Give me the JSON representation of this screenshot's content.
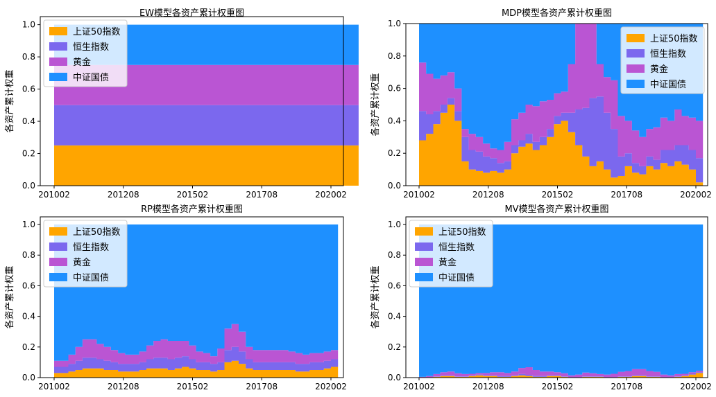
{
  "colors": {
    "上证50指数": "#ffa500",
    "恒生指数": "#7b68ee",
    "黄金": "#ba55d3",
    "中证国债": "#1e90ff"
  },
  "chart_data": [
    {
      "type": "area",
      "title": "EW模型各资产累计权重图",
      "xlabel": "",
      "ylabel": "各资产累计权重",
      "ylim": [
        0,
        1.05
      ],
      "yticks": [
        "0.0",
        "0.2",
        "0.4",
        "0.6",
        "0.8",
        "1.0"
      ],
      "xticks": [
        "201002",
        "201208",
        "201502",
        "201708",
        "202002"
      ],
      "legend_position": "top-left",
      "x_start": "201002",
      "x_end": "202006",
      "series": [
        {
          "name": "上证50指数",
          "values": [
            0.25,
            0.25,
            0.25,
            0.25,
            0.25,
            0.25,
            0.25,
            0.25,
            0.25,
            0.25,
            0.25
          ]
        },
        {
          "name": "恒生指数",
          "values": [
            0.25,
            0.25,
            0.25,
            0.25,
            0.25,
            0.25,
            0.25,
            0.25,
            0.25,
            0.25,
            0.25
          ]
        },
        {
          "name": "黄金",
          "values": [
            0.25,
            0.25,
            0.25,
            0.25,
            0.25,
            0.25,
            0.25,
            0.25,
            0.25,
            0.25,
            0.25
          ]
        },
        {
          "name": "中证国债",
          "values": [
            0.25,
            0.25,
            0.25,
            0.25,
            0.25,
            0.25,
            0.25,
            0.25,
            0.25,
            0.25,
            0.25
          ]
        }
      ]
    },
    {
      "type": "area",
      "title": "MDP模型各资产累计权重图",
      "xlabel": "",
      "ylabel": "各资产累计权重",
      "ylim": [
        0,
        1.0
      ],
      "yticks": [
        "0.0",
        "0.2",
        "0.4",
        "0.6",
        "0.8",
        "1.0"
      ],
      "xticks": [
        "201002",
        "201208",
        "201502",
        "201708",
        "202002"
      ],
      "legend_position": "top-right",
      "x_start": "201002",
      "x_end": "202006",
      "series": [
        {
          "name": "上证50指数",
          "values": [
            0.28,
            0.32,
            0.38,
            0.45,
            0.5,
            0.4,
            0.15,
            0.1,
            0.09,
            0.08,
            0.09,
            0.08,
            0.1,
            0.2,
            0.24,
            0.26,
            0.22,
            0.25,
            0.3,
            0.38,
            0.4,
            0.33,
            0.25,
            0.18,
            0.12,
            0.15,
            0.1,
            0.05,
            0.06,
            0.12,
            0.08,
            0.07,
            0.12,
            0.1,
            0.14,
            0.12,
            0.15,
            0.13,
            0.1,
            0.02
          ]
        },
        {
          "name": "恒生指数",
          "values": [
            0.18,
            0.12,
            0.08,
            0.05,
            0.04,
            0.06,
            0.15,
            0.12,
            0.12,
            0.1,
            0.08,
            0.06,
            0.05,
            0.05,
            0.04,
            0.06,
            0.05,
            0.05,
            0.05,
            0.05,
            0.05,
            0.12,
            0.22,
            0.3,
            0.42,
            0.4,
            0.35,
            0.3,
            0.12,
            0.08,
            0.06,
            0.05,
            0.06,
            0.06,
            0.08,
            0.1,
            0.1,
            0.12,
            0.12,
            0.15
          ]
        },
        {
          "name": "黄金",
          "values": [
            0.3,
            0.25,
            0.2,
            0.18,
            0.16,
            0.14,
            0.05,
            0.1,
            0.09,
            0.08,
            0.06,
            0.08,
            0.12,
            0.16,
            0.17,
            0.18,
            0.22,
            0.22,
            0.18,
            0.14,
            0.13,
            0.3,
            0.53,
            0.52,
            0.46,
            0.2,
            0.22,
            0.3,
            0.25,
            0.2,
            0.2,
            0.18,
            0.17,
            0.2,
            0.2,
            0.18,
            0.22,
            0.18,
            0.2,
            0.23
          ]
        },
        {
          "name": "中证国债",
          "values": [
            0.24,
            0.31,
            0.34,
            0.32,
            0.3,
            0.4,
            0.65,
            0.68,
            0.7,
            0.74,
            0.77,
            0.78,
            0.73,
            0.59,
            0.55,
            0.5,
            0.51,
            0.48,
            0.47,
            0.43,
            0.42,
            0.25,
            0.0,
            0.0,
            0.0,
            0.25,
            0.33,
            0.35,
            0.57,
            0.6,
            0.66,
            0.7,
            0.65,
            0.64,
            0.58,
            0.6,
            0.53,
            0.57,
            0.58,
            0.6
          ]
        }
      ]
    },
    {
      "type": "area",
      "title": "RP模型各资产累计权重图",
      "xlabel": "",
      "ylabel": "各资产累计权重",
      "ylim": [
        0,
        1.05
      ],
      "yticks": [
        "0.0",
        "0.2",
        "0.4",
        "0.6",
        "0.8",
        "1.0"
      ],
      "xticks": [
        "201002",
        "201208",
        "201502",
        "201708",
        "202002"
      ],
      "legend_position": "top-left",
      "x_start": "201002",
      "x_end": "202006",
      "series": [
        {
          "name": "上证50指数",
          "values": [
            0.03,
            0.03,
            0.04,
            0.05,
            0.06,
            0.06,
            0.06,
            0.05,
            0.05,
            0.04,
            0.04,
            0.04,
            0.05,
            0.06,
            0.06,
            0.06,
            0.05,
            0.06,
            0.07,
            0.06,
            0.05,
            0.05,
            0.04,
            0.05,
            0.1,
            0.11,
            0.09,
            0.06,
            0.05,
            0.05,
            0.05,
            0.05,
            0.05,
            0.05,
            0.04,
            0.04,
            0.05,
            0.05,
            0.06,
            0.07
          ]
        },
        {
          "name": "恒生指数",
          "values": [
            0.04,
            0.04,
            0.05,
            0.06,
            0.07,
            0.07,
            0.06,
            0.06,
            0.05,
            0.05,
            0.05,
            0.05,
            0.05,
            0.06,
            0.07,
            0.07,
            0.07,
            0.07,
            0.07,
            0.06,
            0.05,
            0.05,
            0.05,
            0.05,
            0.08,
            0.09,
            0.08,
            0.06,
            0.05,
            0.05,
            0.05,
            0.05,
            0.05,
            0.05,
            0.05,
            0.05,
            0.05,
            0.05,
            0.05,
            0.05
          ]
        },
        {
          "name": "黄金",
          "values": [
            0.04,
            0.04,
            0.06,
            0.09,
            0.12,
            0.12,
            0.1,
            0.09,
            0.08,
            0.07,
            0.06,
            0.06,
            0.07,
            0.09,
            0.11,
            0.12,
            0.12,
            0.11,
            0.1,
            0.09,
            0.07,
            0.06,
            0.05,
            0.09,
            0.14,
            0.15,
            0.13,
            0.08,
            0.08,
            0.08,
            0.08,
            0.08,
            0.08,
            0.07,
            0.07,
            0.06,
            0.06,
            0.06,
            0.06,
            0.06
          ]
        },
        {
          "name": "中证国债",
          "values": [
            0.89,
            0.89,
            0.85,
            0.8,
            0.75,
            0.75,
            0.78,
            0.8,
            0.82,
            0.84,
            0.85,
            0.85,
            0.83,
            0.79,
            0.76,
            0.75,
            0.76,
            0.76,
            0.76,
            0.79,
            0.83,
            0.84,
            0.86,
            0.81,
            0.68,
            0.65,
            0.7,
            0.8,
            0.82,
            0.82,
            0.82,
            0.82,
            0.82,
            0.83,
            0.84,
            0.85,
            0.84,
            0.84,
            0.83,
            0.82
          ]
        }
      ]
    },
    {
      "type": "area",
      "title": "MV模型各资产累计权重图",
      "xlabel": "",
      "ylabel": "各资产累计权重",
      "ylim": [
        0,
        1.05
      ],
      "yticks": [
        "0.0",
        "0.2",
        "0.4",
        "0.6",
        "0.8",
        "1.0"
      ],
      "xticks": [
        "201002",
        "201208",
        "201502",
        "201708",
        "202002"
      ],
      "legend_position": "top-left",
      "x_start": "201002",
      "x_end": "202006",
      "series": [
        {
          "name": "上证50指数",
          "values": [
            0.0,
            0.0,
            0.005,
            0.01,
            0.01,
            0.005,
            0.005,
            0.01,
            0.015,
            0.01,
            0.01,
            0.005,
            0.005,
            0.01,
            0.015,
            0.01,
            0.005,
            0.005,
            0.01,
            0.01,
            0.005,
            0.0,
            0.0,
            0.005,
            0.005,
            0.005,
            0.0,
            0.0,
            0.005,
            0.005,
            0.01,
            0.01,
            0.005,
            0.005,
            0.0,
            0.0,
            0.005,
            0.01,
            0.02,
            0.03
          ]
        },
        {
          "name": "恒生指数",
          "values": [
            0.0,
            0.0,
            0.003,
            0.005,
            0.005,
            0.003,
            0.003,
            0.005,
            0.005,
            0.005,
            0.005,
            0.005,
            0.005,
            0.005,
            0.008,
            0.008,
            0.005,
            0.005,
            0.005,
            0.005,
            0.003,
            0.0,
            0.0,
            0.003,
            0.003,
            0.003,
            0.0,
            0.0,
            0.003,
            0.003,
            0.005,
            0.005,
            0.003,
            0.003,
            0.0,
            0.0,
            0.003,
            0.005,
            0.005,
            0.005
          ]
        },
        {
          "name": "黄金",
          "values": [
            0.005,
            0.01,
            0.015,
            0.02,
            0.025,
            0.02,
            0.015,
            0.01,
            0.01,
            0.015,
            0.02,
            0.025,
            0.02,
            0.025,
            0.04,
            0.05,
            0.04,
            0.03,
            0.025,
            0.02,
            0.02,
            0.015,
            0.02,
            0.025,
            0.02,
            0.015,
            0.02,
            0.025,
            0.03,
            0.035,
            0.04,
            0.04,
            0.035,
            0.03,
            0.02,
            0.015,
            0.015,
            0.01,
            0.01,
            0.01
          ]
        },
        {
          "name": "中证国债",
          "values": [
            0.995,
            0.99,
            0.977,
            0.965,
            0.96,
            0.972,
            0.977,
            0.975,
            0.97,
            0.97,
            0.965,
            0.965,
            0.97,
            0.96,
            0.937,
            0.932,
            0.95,
            0.96,
            0.96,
            0.965,
            0.972,
            0.985,
            0.98,
            0.967,
            0.972,
            0.977,
            0.98,
            0.975,
            0.962,
            0.957,
            0.945,
            0.945,
            0.957,
            0.962,
            0.98,
            0.985,
            0.977,
            0.975,
            0.965,
            0.955
          ]
        }
      ]
    }
  ]
}
